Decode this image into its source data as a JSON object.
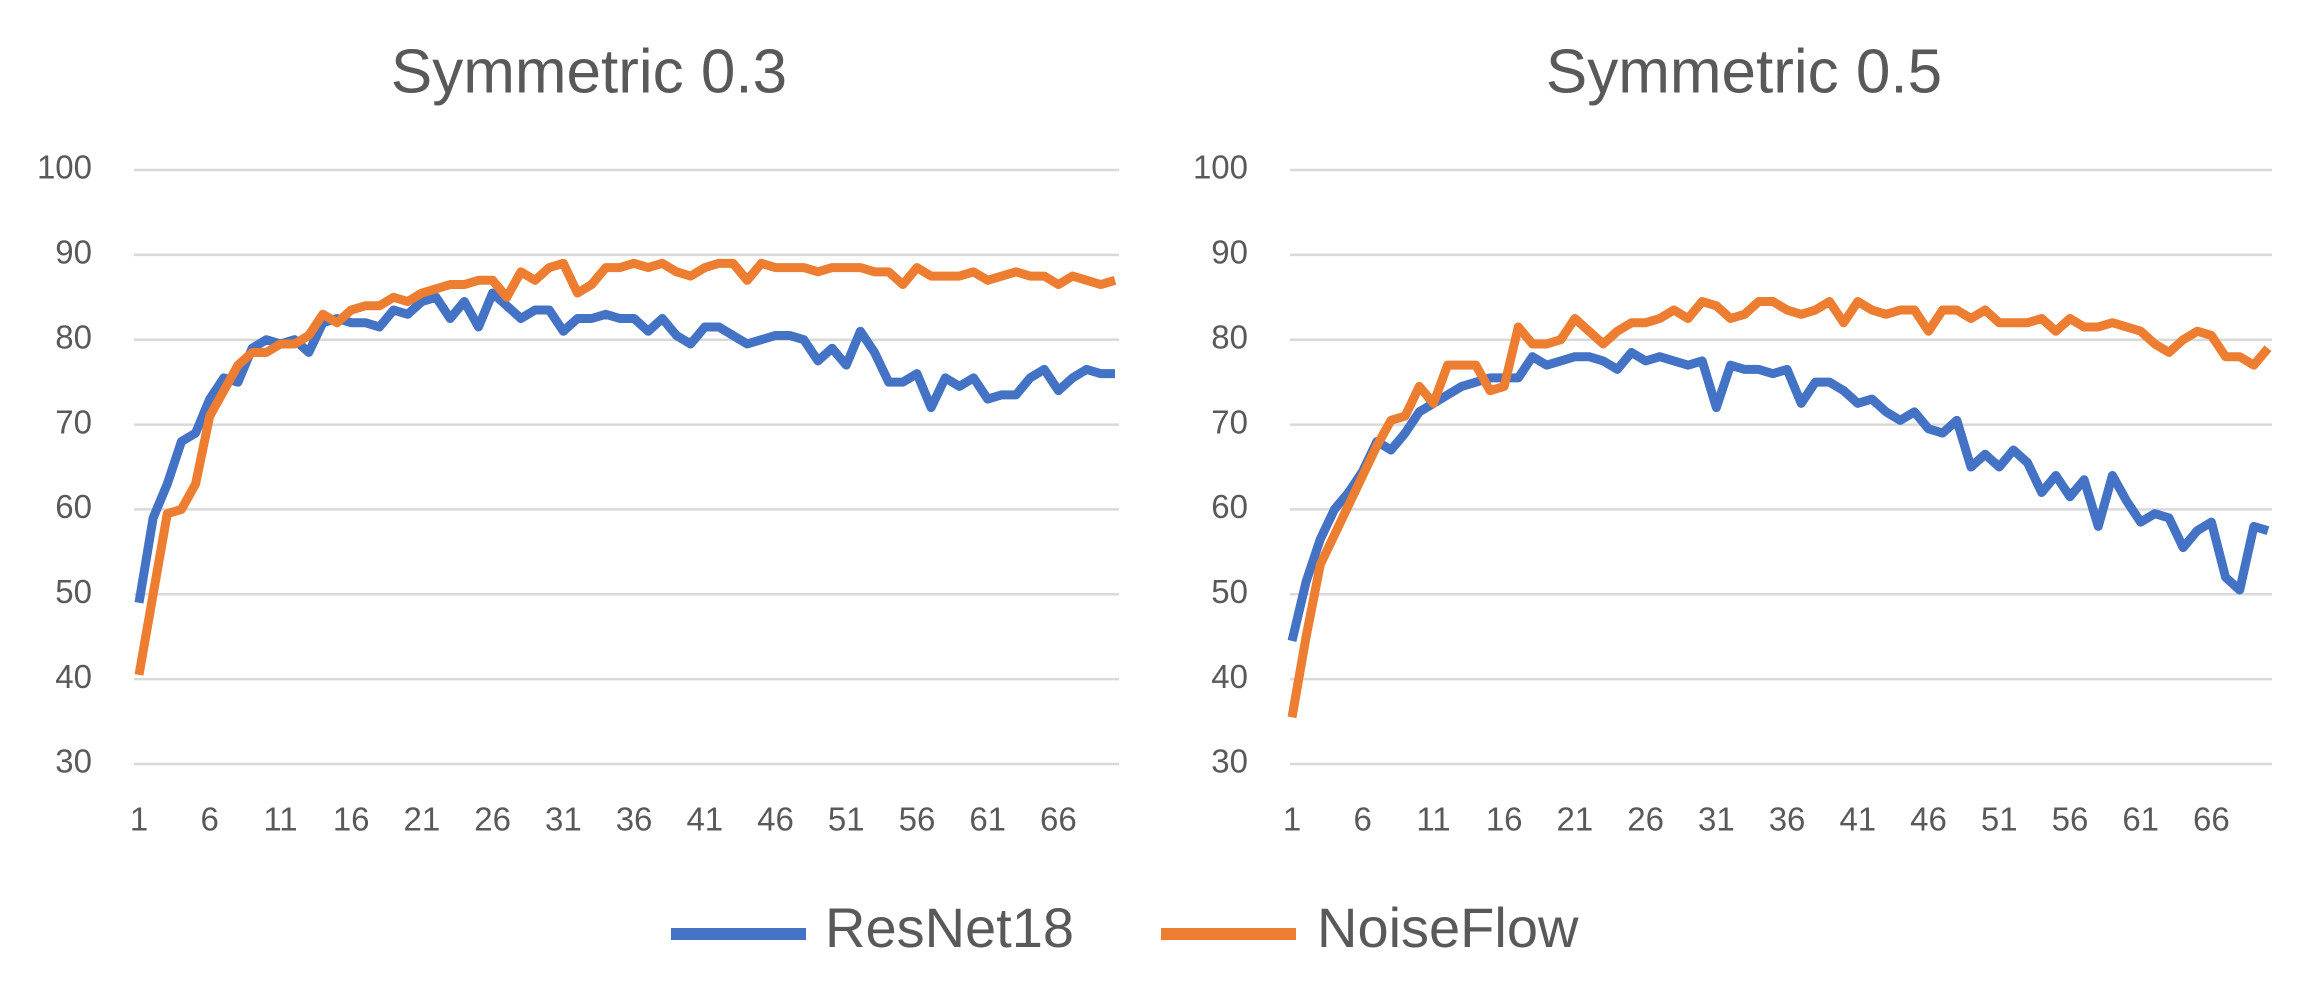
{
  "chart_data": [
    {
      "type": "line",
      "title": "Symmetric 0.3",
      "x": [
        1,
        2,
        3,
        4,
        5,
        6,
        7,
        8,
        9,
        10,
        11,
        12,
        13,
        14,
        15,
        16,
        17,
        18,
        19,
        20,
        21,
        22,
        23,
        24,
        25,
        26,
        27,
        28,
        29,
        30,
        31,
        32,
        33,
        34,
        35,
        36,
        37,
        38,
        39,
        40,
        41,
        42,
        43,
        44,
        45,
        46,
        47,
        48,
        49,
        50,
        51,
        52,
        53,
        54,
        55,
        56,
        57,
        58,
        59,
        60,
        61,
        62,
        63,
        64,
        65,
        66,
        67,
        68,
        69,
        70
      ],
      "series": [
        {
          "name": "ResNet18",
          "color": "#4472c4",
          "values": [
            49,
            59,
            63,
            68,
            69,
            73,
            75.5,
            75,
            79,
            80,
            79.5,
            80,
            78.5,
            82,
            82.5,
            82,
            82,
            81.5,
            83.5,
            83,
            84.5,
            85,
            82.5,
            84.5,
            81.5,
            85.5,
            84,
            82.5,
            83.5,
            83.5,
            81,
            82.5,
            82.5,
            83,
            82.5,
            82.5,
            81,
            82.5,
            80.5,
            79.5,
            81.5,
            81.5,
            80.5,
            79.5,
            80,
            80.5,
            80.5,
            80,
            77.5,
            79,
            77,
            81,
            78.5,
            75,
            75,
            76,
            72,
            75.5,
            74.5,
            75.5,
            73,
            73.5,
            73.5,
            75.5,
            76.5,
            74,
            75.5,
            76.5,
            76,
            76
          ]
        },
        {
          "name": "NoiseFlow",
          "color": "#ed7d31",
          "values": [
            40.5,
            50,
            59.5,
            60,
            63,
            71,
            74,
            77,
            78.5,
            78.5,
            79.5,
            79.5,
            80.5,
            83,
            82,
            83.5,
            84,
            84,
            85,
            84.5,
            85.5,
            86,
            86.5,
            86.5,
            87,
            87,
            85,
            88,
            87,
            88.5,
            89,
            85.5,
            86.5,
            88.5,
            88.5,
            89,
            88.5,
            89,
            88,
            87.5,
            88.5,
            89,
            89,
            87,
            89,
            88.5,
            88.5,
            88.5,
            88,
            88.5,
            88.5,
            88.5,
            88,
            88,
            86.5,
            88.5,
            87.5,
            87.5,
            87.5,
            88,
            87,
            87.5,
            88,
            87.5,
            87.5,
            86.5,
            87.5,
            87,
            86.5,
            87
          ]
        }
      ],
      "xlim": [
        1,
        70
      ],
      "xticks": [
        1,
        6,
        11,
        16,
        21,
        26,
        31,
        36,
        41,
        46,
        51,
        56,
        61,
        66
      ],
      "ylim": [
        30,
        100
      ],
      "yticks": [
        30,
        40,
        50,
        60,
        70,
        80,
        90,
        100
      ],
      "grid": true
    },
    {
      "type": "line",
      "title": "Symmetric 0.5",
      "x": [
        1,
        2,
        3,
        4,
        5,
        6,
        7,
        8,
        9,
        10,
        11,
        12,
        13,
        14,
        15,
        16,
        17,
        18,
        19,
        20,
        21,
        22,
        23,
        24,
        25,
        26,
        27,
        28,
        29,
        30,
        31,
        32,
        33,
        34,
        35,
        36,
        37,
        38,
        39,
        40,
        41,
        42,
        43,
        44,
        45,
        46,
        47,
        48,
        49,
        50,
        51,
        52,
        53,
        54,
        55,
        56,
        57,
        58,
        59,
        60,
        61,
        62,
        63,
        64,
        65,
        66,
        67,
        68,
        69,
        70
      ],
      "series": [
        {
          "name": "ResNet18",
          "color": "#4472c4",
          "values": [
            44.5,
            51.5,
            56.5,
            60,
            62,
            64.5,
            68,
            67,
            69,
            71.5,
            72.5,
            73.5,
            74.5,
            75,
            75.5,
            75.5,
            75.5,
            78,
            77,
            77.5,
            78,
            78,
            77.5,
            76.5,
            78.5,
            77.5,
            78,
            77.5,
            77,
            77.5,
            72,
            77,
            76.5,
            76.5,
            76,
            76.5,
            72.5,
            75,
            75,
            74,
            72.5,
            73,
            71.5,
            70.5,
            71.5,
            69.5,
            69,
            70.5,
            65,
            66.5,
            65,
            67,
            65.5,
            62,
            64,
            61.5,
            63.5,
            58,
            64,
            61,
            58.5,
            59.5,
            59,
            55.5,
            57.5,
            58.5,
            52,
            50.5,
            58,
            57.5
          ]
        },
        {
          "name": "NoiseFlow",
          "color": "#ed7d31",
          "values": [
            35.5,
            45,
            53.5,
            57,
            60.5,
            64,
            67.5,
            70.5,
            71,
            74.5,
            72.5,
            77,
            77,
            77,
            74,
            74.5,
            81.5,
            79.5,
            79.5,
            80,
            82.5,
            81,
            79.5,
            81,
            82,
            82,
            82.5,
            83.5,
            82.5,
            84.5,
            84,
            82.5,
            83,
            84.5,
            84.5,
            83.5,
            83,
            83.5,
            84.5,
            82,
            84.5,
            83.5,
            83,
            83.5,
            83.5,
            81,
            83.5,
            83.5,
            82.5,
            83.5,
            82,
            82,
            82,
            82.5,
            81,
            82.5,
            81.5,
            81.5,
            82,
            81.5,
            81,
            79.5,
            78.5,
            80,
            81,
            80.5,
            78,
            78,
            77,
            79
          ]
        }
      ],
      "xlim": [
        1,
        70
      ],
      "xticks": [
        1,
        6,
        11,
        16,
        21,
        26,
        31,
        36,
        41,
        46,
        51,
        56,
        61,
        66
      ],
      "ylim": [
        30,
        100
      ],
      "yticks": [
        30,
        40,
        50,
        60,
        70,
        80,
        90,
        100
      ],
      "grid": true
    }
  ]
}
